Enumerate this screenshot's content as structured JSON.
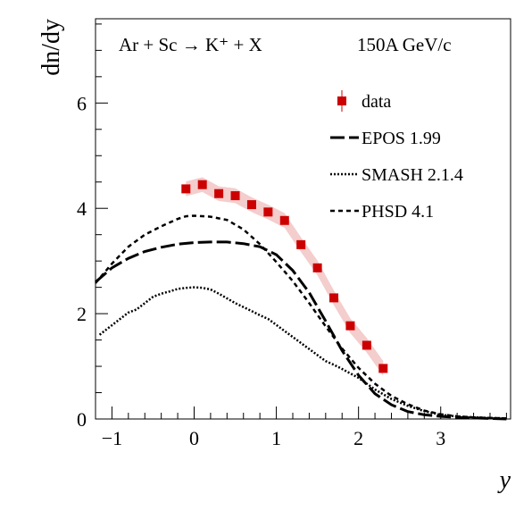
{
  "chart_data": {
    "type": "line",
    "annotation": "Ar + Sc → K⁺ + X",
    "energy": "150A GeV/c",
    "xlabel": "y",
    "ylabel": "dn/dy",
    "xlim": [
      -1.2,
      3.85
    ],
    "ylim": [
      0,
      7.6
    ],
    "xticks": [
      -1,
      0,
      1,
      2,
      3
    ],
    "yticks": [
      0,
      2,
      4,
      6
    ],
    "grid": false,
    "legend_position": "top-right",
    "series": [
      {
        "name": "data",
        "style": "markers",
        "color": "#cc0000",
        "band_color": "#f2c4c4",
        "x": [
          -0.1,
          0.1,
          0.3,
          0.5,
          0.7,
          0.9,
          1.1,
          1.3,
          1.5,
          1.7,
          1.9,
          2.1,
          2.3
        ],
        "y": [
          4.37,
          4.45,
          4.28,
          4.24,
          4.07,
          3.93,
          3.77,
          3.31,
          2.87,
          2.3,
          1.77,
          1.4,
          0.96
        ]
      },
      {
        "name": "EPOS 1.99",
        "style": "long-dash",
        "x": [
          -1.2,
          -1.0,
          -0.8,
          -0.6,
          -0.4,
          -0.2,
          0.0,
          0.2,
          0.4,
          0.6,
          0.8,
          1.0,
          1.2,
          1.4,
          1.6,
          1.8,
          2.0,
          2.2,
          2.4,
          2.6,
          2.8,
          3.0,
          3.2,
          3.4,
          3.6,
          3.8
        ],
        "y": [
          2.6,
          2.87,
          3.05,
          3.18,
          3.26,
          3.32,
          3.35,
          3.36,
          3.36,
          3.33,
          3.27,
          3.12,
          2.82,
          2.4,
          1.86,
          1.3,
          0.83,
          0.48,
          0.27,
          0.14,
          0.08,
          0.05,
          0.03,
          0.02,
          0.01,
          0.0
        ]
      },
      {
        "name": "SMASH 2.1.4",
        "style": "dotted",
        "x": [
          -1.15,
          -1.05,
          -0.8,
          -0.7,
          -0.5,
          -0.4,
          -0.3,
          -0.2,
          -0.1,
          0.0,
          0.1,
          0.2,
          0.3,
          0.5,
          0.7,
          0.8,
          0.9,
          1.6,
          1.7,
          1.8,
          2.0,
          2.2,
          2.4,
          2.6,
          2.8,
          3.0,
          3.2,
          3.4,
          3.6,
          3.8
        ],
        "y": [
          1.6,
          1.72,
          2.02,
          2.08,
          2.32,
          2.38,
          2.42,
          2.47,
          2.49,
          2.5,
          2.49,
          2.46,
          2.38,
          2.2,
          2.05,
          1.97,
          1.9,
          1.1,
          1.03,
          0.95,
          0.78,
          0.56,
          0.38,
          0.25,
          0.15,
          0.08,
          0.05,
          0.03,
          0.02,
          0.01
        ]
      },
      {
        "name": "PHSD 4.1",
        "style": "short-dash",
        "x": [
          -1.2,
          -1.0,
          -0.8,
          -0.6,
          -0.4,
          -0.2,
          -0.1,
          0.0,
          0.2,
          0.4,
          0.6,
          0.8,
          1.0,
          1.2,
          1.4,
          1.6,
          1.8,
          2.0,
          2.2,
          2.4,
          2.6,
          2.8,
          3.0,
          3.2,
          3.4,
          3.6,
          3.8
        ],
        "y": [
          2.58,
          2.95,
          3.27,
          3.5,
          3.66,
          3.8,
          3.85,
          3.86,
          3.84,
          3.78,
          3.6,
          3.32,
          2.98,
          2.62,
          2.2,
          1.76,
          1.34,
          0.97,
          0.67,
          0.44,
          0.28,
          0.16,
          0.09,
          0.05,
          0.03,
          0.02,
          0.01
        ]
      }
    ]
  }
}
